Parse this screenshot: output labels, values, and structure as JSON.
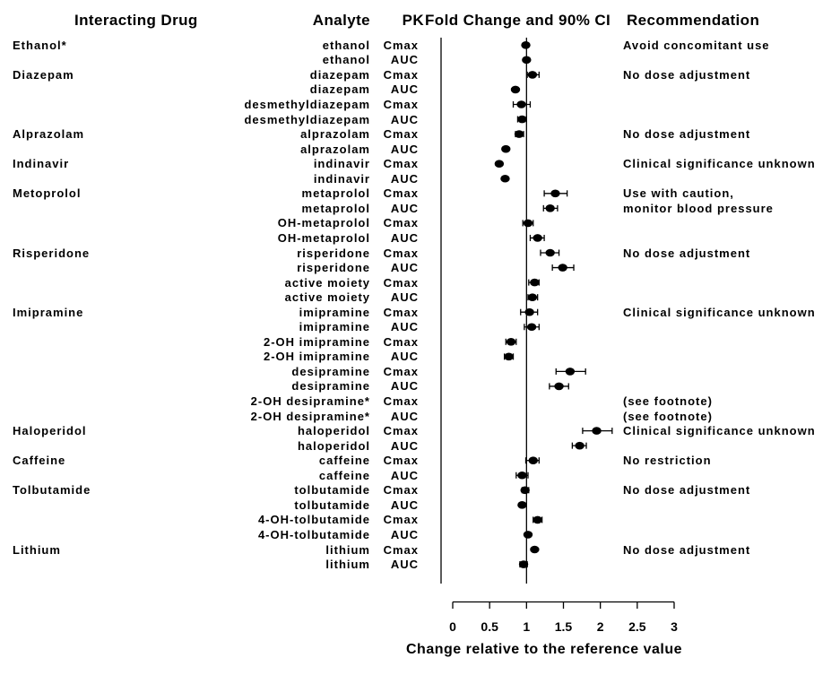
{
  "headers": {
    "interacting_drug": "Interacting Drug",
    "analyte": "Analyte",
    "pk": "PK",
    "fold_change": "Fold Change and 90% CI",
    "recommendation": "Recommendation"
  },
  "colors": {
    "background": "#ffffff",
    "foreground": "#000000"
  },
  "chart_data": {
    "type": "scatter",
    "subtype": "forest-plot",
    "xlabel": "Change relative to the reference value",
    "xlim": [
      0,
      3
    ],
    "xticks": [
      0,
      0.5,
      1,
      1.5,
      2,
      2.5,
      3
    ],
    "reference_line": 1,
    "ci_level": "90%",
    "rows": [
      {
        "drug": "Ethanol*",
        "analyte": "ethanol",
        "pk": "Cmax",
        "est": 0.99,
        "lo": null,
        "hi": null,
        "rec": "Avoid concomitant use"
      },
      {
        "drug": null,
        "analyte": "ethanol",
        "pk": "AUC",
        "est": 1.0,
        "lo": null,
        "hi": null,
        "rec": null
      },
      {
        "drug": "Diazepam",
        "analyte": "diazepam",
        "pk": "Cmax",
        "est": 1.08,
        "lo": 1.01,
        "hi": 1.17,
        "rec": "No dose adjustment"
      },
      {
        "drug": null,
        "analyte": "diazepam",
        "pk": "AUC",
        "est": 0.85,
        "lo": null,
        "hi": null,
        "rec": null
      },
      {
        "drug": null,
        "analyte": "desmethyldiazepam",
        "pk": "Cmax",
        "est": 0.93,
        "lo": 0.82,
        "hi": 1.05,
        "rec": null
      },
      {
        "drug": null,
        "analyte": "desmethyldiazepam",
        "pk": "AUC",
        "est": 0.94,
        "lo": 0.88,
        "hi": 1.0,
        "rec": null
      },
      {
        "drug": "Alprazolam",
        "analyte": "alprazolam",
        "pk": "Cmax",
        "est": 0.9,
        "lo": 0.85,
        "hi": 0.96,
        "rec": "No dose adjustment"
      },
      {
        "drug": null,
        "analyte": "alprazolam",
        "pk": "AUC",
        "est": 0.72,
        "lo": null,
        "hi": null,
        "rec": null
      },
      {
        "drug": "Indinavir",
        "analyte": "indinavir",
        "pk": "Cmax",
        "est": 0.63,
        "lo": null,
        "hi": null,
        "rec": "Clinical significance unknown"
      },
      {
        "drug": null,
        "analyte": "indinavir",
        "pk": "AUC",
        "est": 0.71,
        "lo": null,
        "hi": null,
        "rec": null
      },
      {
        "drug": "Metoprolol",
        "analyte": "metaprolol",
        "pk": "Cmax",
        "est": 1.39,
        "lo": 1.24,
        "hi": 1.55,
        "rec": "Use with caution,"
      },
      {
        "drug": null,
        "analyte": "metaprolol",
        "pk": "AUC",
        "est": 1.32,
        "lo": 1.23,
        "hi": 1.42,
        "rec": "monitor blood pressure"
      },
      {
        "drug": null,
        "analyte": "OH-metaprolol",
        "pk": "Cmax",
        "est": 1.02,
        "lo": 0.95,
        "hi": 1.09,
        "rec": null
      },
      {
        "drug": null,
        "analyte": "OH-metaprolol",
        "pk": "AUC",
        "est": 1.15,
        "lo": 1.05,
        "hi": 1.24,
        "rec": null
      },
      {
        "drug": "Risperidone",
        "analyte": "risperidone",
        "pk": "Cmax",
        "est": 1.32,
        "lo": 1.19,
        "hi": 1.44,
        "rec": "No dose adjustment"
      },
      {
        "drug": null,
        "analyte": "risperidone",
        "pk": "AUC",
        "est": 1.49,
        "lo": 1.35,
        "hi": 1.64,
        "rec": null
      },
      {
        "drug": null,
        "analyte": "active moiety",
        "pk": "Cmax",
        "est": 1.11,
        "lo": 1.03,
        "hi": 1.17,
        "rec": null
      },
      {
        "drug": null,
        "analyte": "active moiety",
        "pk": "AUC",
        "est": 1.08,
        "lo": 1.02,
        "hi": 1.15,
        "rec": null
      },
      {
        "drug": "Imipramine",
        "analyte": "imipramine",
        "pk": "Cmax",
        "est": 1.04,
        "lo": 0.92,
        "hi": 1.15,
        "rec": "Clinical significance unknown"
      },
      {
        "drug": null,
        "analyte": "imipramine",
        "pk": "AUC",
        "est": 1.07,
        "lo": 0.97,
        "hi": 1.17,
        "rec": null
      },
      {
        "drug": null,
        "analyte": "2-OH imipramine",
        "pk": "Cmax",
        "est": 0.79,
        "lo": 0.72,
        "hi": 0.86,
        "rec": null
      },
      {
        "drug": null,
        "analyte": "2-OH imipramine",
        "pk": "AUC",
        "est": 0.76,
        "lo": 0.7,
        "hi": 0.82,
        "rec": null
      },
      {
        "drug": null,
        "analyte": "desipramine",
        "pk": "Cmax",
        "est": 1.59,
        "lo": 1.4,
        "hi": 1.8,
        "rec": null
      },
      {
        "drug": null,
        "analyte": "desipramine",
        "pk": "AUC",
        "est": 1.44,
        "lo": 1.31,
        "hi": 1.57,
        "rec": null
      },
      {
        "drug": null,
        "analyte": "2-OH desipramine*",
        "pk": "Cmax",
        "est": null,
        "lo": null,
        "hi": null,
        "rec": "(see footnote)"
      },
      {
        "drug": null,
        "analyte": "2-OH desipramine*",
        "pk": "AUC",
        "est": null,
        "lo": null,
        "hi": null,
        "rec": "(see footnote)"
      },
      {
        "drug": "Haloperidol",
        "analyte": "haloperidol",
        "pk": "Cmax",
        "est": 1.95,
        "lo": 1.76,
        "hi": 2.16,
        "rec": "Clinical significance unknown"
      },
      {
        "drug": null,
        "analyte": "haloperidol",
        "pk": "AUC",
        "est": 1.72,
        "lo": 1.62,
        "hi": 1.81,
        "rec": null
      },
      {
        "drug": "Caffeine",
        "analyte": "caffeine",
        "pk": "Cmax",
        "est": 1.09,
        "lo": 0.99,
        "hi": 1.17,
        "rec": "No restriction"
      },
      {
        "drug": null,
        "analyte": "caffeine",
        "pk": "AUC",
        "est": 0.94,
        "lo": 0.86,
        "hi": 1.02,
        "rec": null
      },
      {
        "drug": "Tolbutamide",
        "analyte": "tolbutamide",
        "pk": "Cmax",
        "est": 0.98,
        "lo": 0.94,
        "hi": 1.03,
        "rec": "No dose adjustment"
      },
      {
        "drug": null,
        "analyte": "tolbutamide",
        "pk": "AUC",
        "est": 0.94,
        "lo": null,
        "hi": null,
        "rec": null
      },
      {
        "drug": null,
        "analyte": "4-OH-tolbutamide",
        "pk": "Cmax",
        "est": 1.15,
        "lo": 1.09,
        "hi": 1.21,
        "rec": null
      },
      {
        "drug": null,
        "analyte": "4-OH-tolbutamide",
        "pk": "AUC",
        "est": 1.02,
        "lo": null,
        "hi": null,
        "rec": null
      },
      {
        "drug": "Lithium",
        "analyte": "lithium",
        "pk": "Cmax",
        "est": 1.11,
        "lo": null,
        "hi": null,
        "rec": "No dose adjustment"
      },
      {
        "drug": null,
        "analyte": "lithium",
        "pk": "AUC",
        "est": 0.96,
        "lo": 0.91,
        "hi": 1.01,
        "rec": null
      }
    ]
  }
}
